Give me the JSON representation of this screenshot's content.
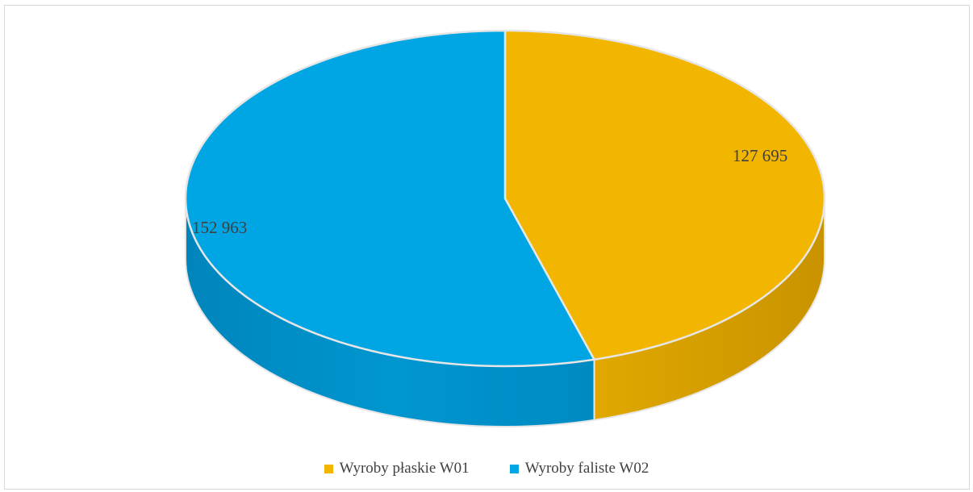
{
  "chart_data": {
    "type": "pie",
    "style": "3d",
    "title": "",
    "categories": [
      "Wyroby płaskie W01",
      "Wyroby faliste W02"
    ],
    "values": [
      127695,
      152963
    ],
    "data_labels": [
      "127 695",
      "152 963"
    ],
    "colors": [
      "#F2B600",
      "#00A6E4"
    ],
    "legend_position": "bottom"
  }
}
